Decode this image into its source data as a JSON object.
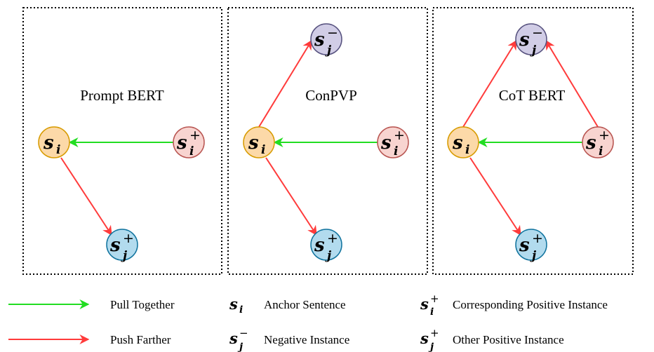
{
  "panels": [
    {
      "title": "Prompt BERT"
    },
    {
      "title": "ConPVP"
    },
    {
      "title": "CoT BERT"
    }
  ],
  "nodes": {
    "anchor": {
      "base": "s",
      "sub": "i",
      "sup": "",
      "fill": "#fcd9a8",
      "stroke": "#d79b00"
    },
    "corresponding_positive": {
      "base": "s",
      "sub": "i",
      "sup": "+",
      "fill": "#f8d4d0",
      "stroke": "#b85450"
    },
    "negative": {
      "base": "s",
      "sub": "j",
      "sup": "−",
      "fill": "#d1cde6",
      "stroke": "#56517e"
    },
    "other_positive": {
      "base": "s",
      "sub": "j",
      "sup": "+",
      "fill": "#b2dbee",
      "stroke": "#10739e"
    }
  },
  "colors": {
    "pull": "#22dd22",
    "push": "#ff3b3b",
    "border": "#000000"
  },
  "legend": {
    "pull_label": "Pull Together",
    "push_label": "Push Farther",
    "anchor_label": "Anchor Sentence",
    "negative_label": "Negative Instance",
    "corresponding_positive_label": "Corresponding Positive Instance",
    "other_positive_label": "Other Positive Instance"
  }
}
